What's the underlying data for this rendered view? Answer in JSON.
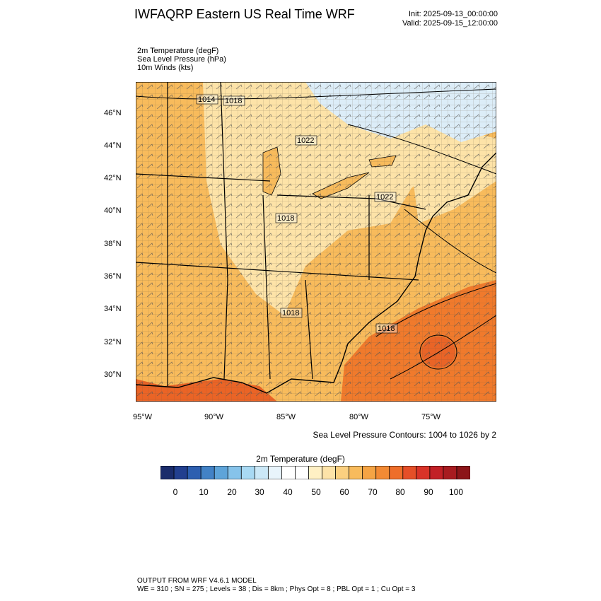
{
  "header": {
    "title": "IWFAQRP Eastern US Real Time WRF",
    "init": "Init: 2025-09-13_00:00:00",
    "valid": "Valid: 2025-09-15_12:00:00"
  },
  "fields": [
    "2m Temperature   (degF)",
    "Sea Level Pressure   (hPa)",
    "10m Winds   (kts)"
  ],
  "map": {
    "lat_labels": [
      "46°N",
      "44°N",
      "42°N",
      "40°N",
      "38°N",
      "36°N",
      "34°N",
      "32°N",
      "30°N"
    ],
    "lon_labels": [
      "95°W",
      "90°W",
      "85°W",
      "80°W",
      "75°W"
    ],
    "pressure_labels": [
      "1014",
      "1018",
      "1022",
      "1022",
      "1018",
      "1018",
      "1018"
    ],
    "colors": {
      "land_warm": "#f8bb5c",
      "land_mild": "#fde3a8",
      "cool": "#dcedf8",
      "hot": "#f07a2c",
      "very_hot": "#ea6426"
    }
  },
  "contour_note": "Sea Level Pressure Contours: 1004 to 1026 by 2",
  "colorbar": {
    "title": "2m Temperature  (degF)",
    "ticks": [
      "0",
      "10",
      "20",
      "30",
      "40",
      "50",
      "60",
      "70",
      "80",
      "90",
      "100"
    ],
    "colors": [
      "#1a2c6b",
      "#223f8f",
      "#2d5fb0",
      "#4282c6",
      "#5ea4d9",
      "#86c3ea",
      "#a8d9f3",
      "#cbe8f7",
      "#e8f4fb",
      "#ffffff",
      "#ffffff",
      "#fff0c4",
      "#fde3a8",
      "#fbd080",
      "#f8bb5c",
      "#f5a444",
      "#f28a34",
      "#ee6e2a",
      "#e54f28",
      "#d93328",
      "#c22026",
      "#a81b20",
      "#8c1519"
    ]
  },
  "footer": {
    "line1": "OUTPUT FROM WRF V4.6.1 MODEL",
    "line2": "WE = 310 ; SN = 275 ; Levels = 38 ; Dis = 8km ; Phys Opt = 8 ; PBL Opt = 1 ; Cu Opt = 3"
  }
}
